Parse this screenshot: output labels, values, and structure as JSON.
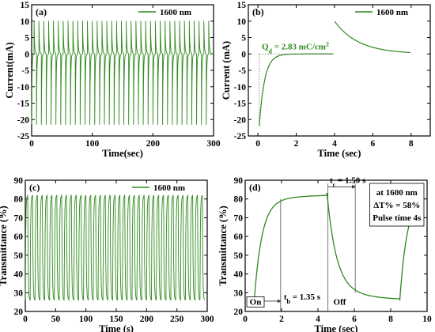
{
  "colors": {
    "series": "#2f8a1d",
    "axis": "#000000",
    "guide": "#555555"
  },
  "chart_data": [
    {
      "type": "line",
      "panel_label": "(a)",
      "xlabel": "Time(sec)",
      "ylabel": "Current(mA)",
      "xlim": [
        0,
        300
      ],
      "ylim": [
        -25,
        15
      ],
      "xticks": [
        0,
        100,
        200,
        300
      ],
      "xtick_labels": [
        "0",
        "100",
        "200",
        "300"
      ],
      "yticks": [
        -25,
        -20,
        -15,
        -10,
        -5,
        0,
        5,
        10,
        15
      ],
      "ytick_labels": [
        "-25",
        "-20",
        "-15",
        "-10",
        "-5",
        "0",
        "5",
        "10",
        "15"
      ],
      "legend": "1600 nm",
      "legend_position": "top-right",
      "series": [
        {
          "name": "1600 nm",
          "kind": "current",
          "period": 8,
          "cycles": 37,
          "peak_positive": 10,
          "peak_negative": -21.5
        }
      ]
    },
    {
      "type": "line",
      "panel_label": "(b)",
      "xlabel": "Time (sec)",
      "ylabel": "Current (mA)",
      "xlim": [
        -0.5,
        9
      ],
      "ylim": [
        -25,
        15
      ],
      "xticks": [
        0,
        2,
        4,
        6,
        8
      ],
      "xtick_labels": [
        "0",
        "2",
        "4",
        "6",
        "8"
      ],
      "yticks": [
        -25,
        -20,
        -15,
        -10,
        -5,
        0,
        5,
        10,
        15
      ],
      "ytick_labels": [
        "-25",
        "-20",
        "-15",
        "-10",
        "-5",
        "0",
        "5",
        "10",
        "15"
      ],
      "legend": "1600 nm",
      "legend_position": "top-right",
      "annotation": {
        "prefix": "Q",
        "subscript": "d",
        "text": " = 2.83 mC/cm",
        "superscript": "2"
      },
      "series": [
        {
          "name": "1600 nm",
          "kind": "single-current",
          "peak_negative": -22,
          "peak_positive": 10
        }
      ]
    },
    {
      "type": "line",
      "panel_label": "(c)",
      "xlabel": "Time (s)",
      "ylabel": "Transmittance (%)",
      "xlim": [
        0,
        300
      ],
      "ylim": [
        20,
        90
      ],
      "xticks": [
        0,
        50,
        100,
        150,
        200,
        250,
        300
      ],
      "xtick_labels": [
        "0",
        "50",
        "100",
        "150",
        "200",
        "250",
        "300"
      ],
      "yticks": [
        20,
        30,
        40,
        50,
        60,
        70,
        80,
        90
      ],
      "ytick_labels": [
        "20",
        "30",
        "40",
        "50",
        "60",
        "70",
        "80",
        "90"
      ],
      "legend": "1600 nm",
      "legend_position": "top-right",
      "series": [
        {
          "name": "1600 nm",
          "kind": "transmittance",
          "period": 8,
          "cycles": 37,
          "max": 82,
          "min": 26
        }
      ]
    },
    {
      "type": "line",
      "panel_label": "(d)",
      "xlabel": "Time (sec)",
      "ylabel": "Transmittance (%)",
      "xlim": [
        0,
        10
      ],
      "ylim": [
        20,
        90
      ],
      "xticks": [
        0,
        2,
        4,
        6,
        8,
        10
      ],
      "xtick_labels": [
        "0",
        "2",
        "4",
        "6",
        "8",
        "10"
      ],
      "yticks": [
        20,
        30,
        40,
        50,
        60,
        70,
        80,
        90
      ],
      "ytick_labels": [
        "20",
        "30",
        "40",
        "50",
        "60",
        "70",
        "80",
        "90"
      ],
      "info_box": [
        "at 1600 nm",
        "ΔT% = 58%",
        "Pulse time 4s"
      ],
      "tb_label": {
        "main": "t",
        "sub": "b",
        "rest": " = 1.35 s"
      },
      "tc_label": {
        "main": "t",
        "sub": "c",
        "rest": " = 1.50 s"
      },
      "on_label": "On",
      "off_label": "Off",
      "markers": {
        "tb_x": 1.95,
        "tc_x": 4.55,
        "tc_end_x": 6.05
      },
      "series": [
        {
          "name": "1600 nm",
          "kind": "single-transmittance",
          "min": 26,
          "max": 83
        }
      ]
    }
  ]
}
